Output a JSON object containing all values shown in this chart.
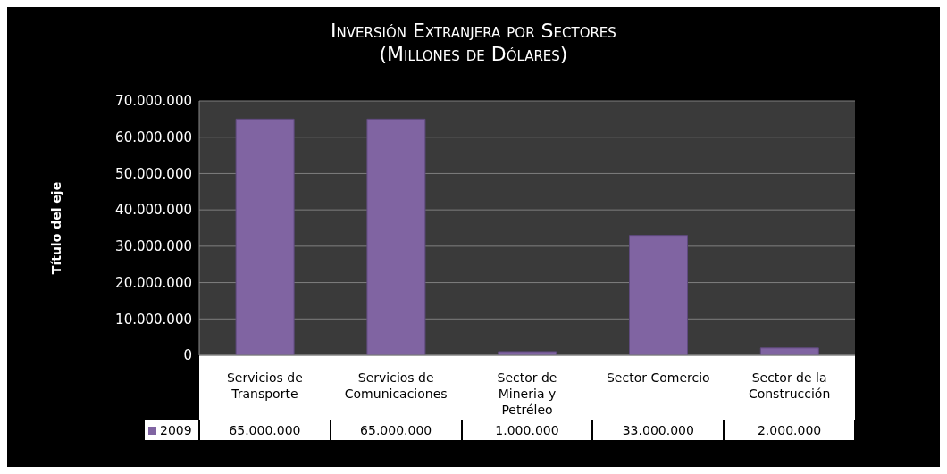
{
  "chart_data": {
    "type": "bar",
    "title": "Inversión Extranjera por Sectores",
    "subtitle": "(Millones de Dólares)",
    "ylabel": "Título del eje",
    "categories": [
      "Servicios de Transporte",
      "Servicios de Comunicaciones",
      "Sector de Mineria y Petréleo",
      "Sector Comercio",
      "Sector de la Construcción"
    ],
    "series": [
      {
        "name": "2009",
        "color": "#8064a2",
        "values": [
          65000000,
          65000000,
          1000000,
          33000000,
          2000000
        ],
        "value_labels": [
          "65.000.000",
          "65.000.000",
          "1.000.000",
          "33.000.000",
          "2.000.000"
        ]
      }
    ],
    "ylim": [
      0,
      70000000
    ],
    "yticks": [
      {
        "value": 0,
        "label": "0"
      },
      {
        "value": 10000000,
        "label": "10.000.000"
      },
      {
        "value": 20000000,
        "label": "20.000.000"
      },
      {
        "value": 30000000,
        "label": "30.000.000"
      },
      {
        "value": 40000000,
        "label": "40.000.000"
      },
      {
        "value": 50000000,
        "label": "50.000.000"
      },
      {
        "value": 60000000,
        "label": "60.000.000"
      },
      {
        "value": 70000000,
        "label": "70.000.000"
      }
    ],
    "grid": "y",
    "legend": "bottom left"
  }
}
